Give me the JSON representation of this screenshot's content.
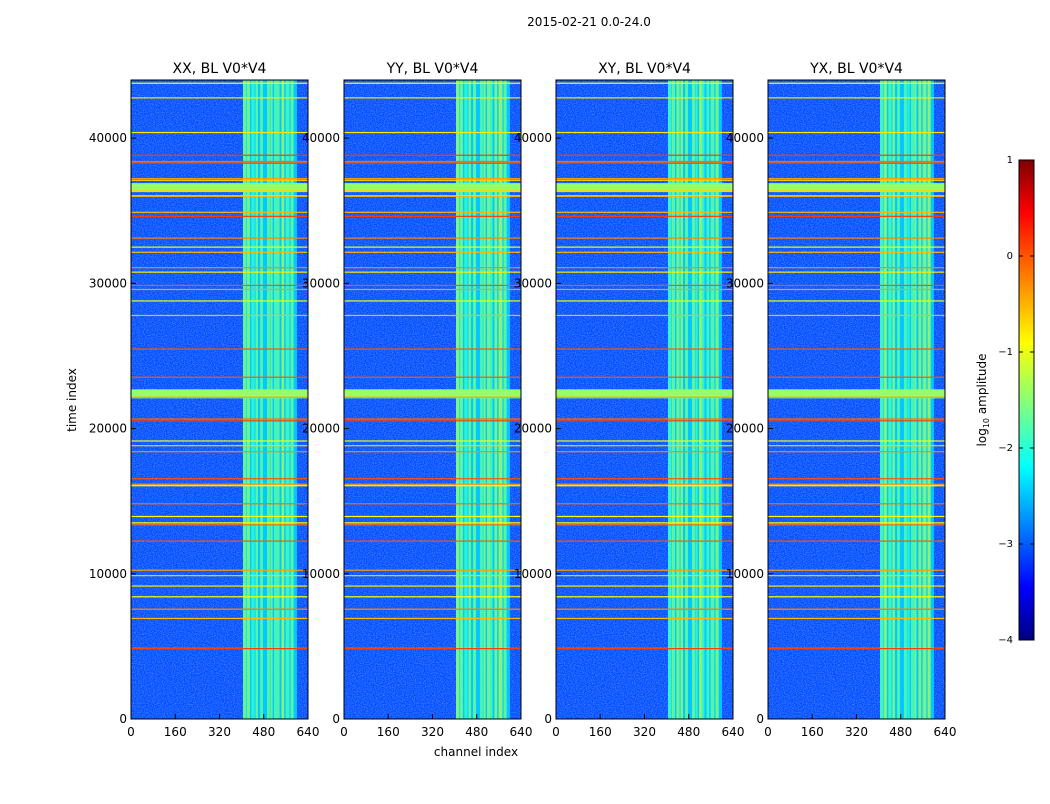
{
  "chart_data": {
    "type": "heatmap",
    "suptitle": "2015-02-21 0.0-24.0",
    "xlabel": "channel index",
    "ylabel": "time index",
    "xlim": [
      0,
      640
    ],
    "ylim": [
      0,
      44000
    ],
    "xticks": [
      0,
      160,
      320,
      480,
      640
    ],
    "yticks": [
      0,
      10000,
      20000,
      30000,
      40000
    ],
    "panels": [
      {
        "title": "XX, BL V0*V4"
      },
      {
        "title": "YY, BL V0*V4"
      },
      {
        "title": "XY, BL V0*V4"
      },
      {
        "title": "YX, BL V0*V4"
      }
    ],
    "colorbar": {
      "label_prefix": "log",
      "label_sub": "10",
      "label_suffix": " amplitude",
      "range": [
        -4,
        1
      ],
      "ticks": [
        1,
        0,
        -1,
        -2,
        -3,
        -4
      ],
      "tick_labels": [
        "1",
        "0",
        "−1",
        "−2",
        "−3",
        "−4"
      ],
      "colormap": "jet"
    },
    "features": {
      "rfi_channel_band": [
        405,
        600
      ],
      "broadband_flag_rows": [
        36500,
        22300
      ],
      "background_level": -3.0,
      "band_level": -1.6,
      "flag_line_level": -0.4
    }
  }
}
